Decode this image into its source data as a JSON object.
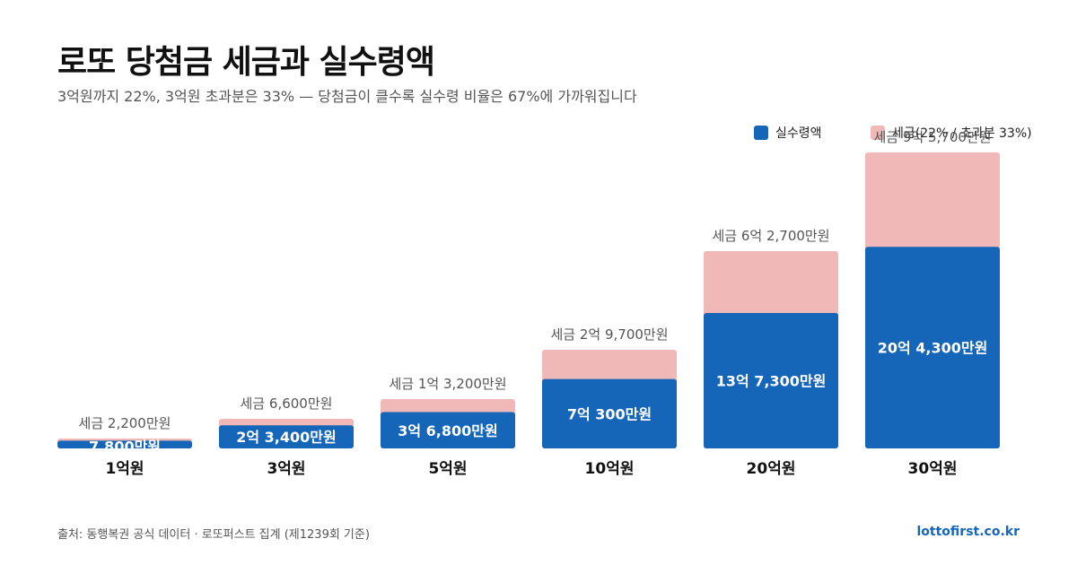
{
  "header": {
    "title": "로또 당첨금 세금과 실수령액",
    "subtitle": "3억원까지 22%, 3억원 초과분은 33% — 당첨금이 클수록 실수령 비율은 67%에 가까워집니다"
  },
  "legend": {
    "net_label": "실수령액",
    "tax_label": "세금(22% / 초과분 33%)"
  },
  "colors": {
    "net": "#1565b8",
    "tax": "#f0b8b6",
    "tax_text": "#555555",
    "net_text": "#ffffff",
    "category_text": "#111111"
  },
  "footer": {
    "source": "출처: 동행복권 공식 데이터 · 로또퍼스트 집계 (제1239회 기준)",
    "site": "lottofirst.co.kr"
  },
  "chart_data": {
    "type": "bar",
    "stacked": true,
    "unit": "만원",
    "categories": [
      "1억원",
      "3억원",
      "5억원",
      "10억원",
      "20억원",
      "30억원"
    ],
    "series": [
      {
        "name": "실수령액",
        "values": [
          7800,
          23400,
          36800,
          70300,
          137300,
          204300
        ]
      },
      {
        "name": "세금(22% / 초과분 33%)",
        "values": [
          2200,
          6600,
          13200,
          29700,
          62700,
          95700
        ]
      }
    ],
    "net_labels": [
      "7,800만원",
      "2억 3,400만원",
      "3억 6,800만원",
      "7억 300만원",
      "13억 7,300만원",
      "20억 4,300만원"
    ],
    "tax_labels": [
      "세금 2,200만원",
      "세금 6,600만원",
      "세금 1억 3,200만원",
      "세금 2억 9,700만원",
      "세금 6억 2,700만원",
      "세금 9억 5,700만원"
    ],
    "ylim": [
      0,
      300000
    ],
    "grid": false,
    "legend_position": "top-right"
  }
}
